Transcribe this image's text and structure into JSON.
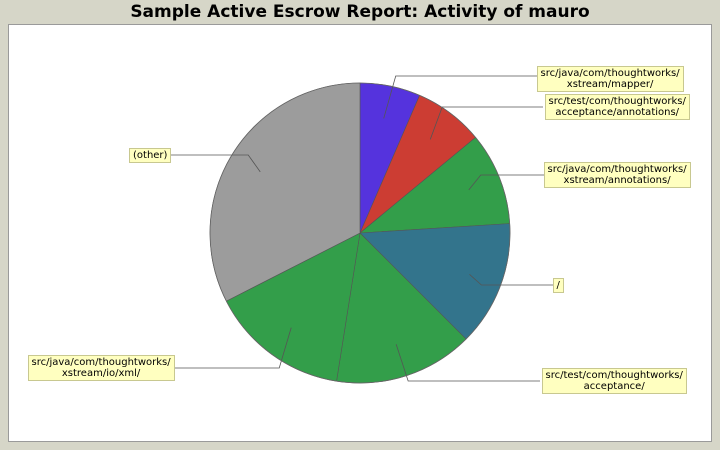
{
  "chart_data": {
    "type": "pie",
    "title": "Sample Active Escrow Report: Activity of mauro",
    "slices": [
      {
        "label": "src/java/com/thoughtworks/\nxstream/mapper/",
        "value": 6.5,
        "color": "#5533dd"
      },
      {
        "label": "src/test/com/thoughtworks/\nacceptance/annotations/",
        "value": 7.5,
        "color": "#cc3d33"
      },
      {
        "label": "src/java/com/thoughtworks/\nxstream/annotations/",
        "value": 10.0,
        "color": "#339e4a"
      },
      {
        "label": "/",
        "value": 13.5,
        "color": "#33748c"
      },
      {
        "label": "src/test/com/thoughtworks/\nacceptance/",
        "value": 15.0,
        "color": "#339e4a"
      },
      {
        "label": "src/java/com/thoughtworks/\nxstream/io/xml/",
        "value": 15.0,
        "color": "#339e4a"
      },
      {
        "label": "(other)",
        "value": 32.5,
        "color": "#9c9c9c"
      }
    ],
    "start_angle_deg": 90,
    "direction": "clockwise",
    "legend": "none"
  }
}
